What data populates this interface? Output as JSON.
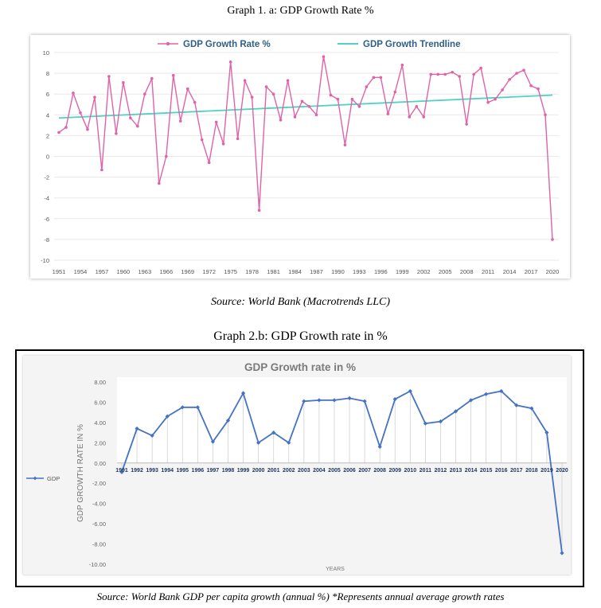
{
  "graph1": {
    "caption": "Graph 1. a: GDP Growth Rate %",
    "source": "Source: World Bank (Macrotrends LLC)"
  },
  "graph2": {
    "caption": "Graph   2.b: GDP Growth rate in %",
    "source": "Source: World Bank GDP per capita growth (annual %) *Represents annual average growth rates"
  },
  "chart_data": [
    {
      "type": "line",
      "title": "",
      "legend_position": "top",
      "x": [
        1951,
        1952,
        1953,
        1954,
        1955,
        1956,
        1957,
        1958,
        1959,
        1960,
        1961,
        1962,
        1963,
        1964,
        1965,
        1966,
        1967,
        1968,
        1969,
        1970,
        1971,
        1972,
        1973,
        1974,
        1975,
        1976,
        1977,
        1978,
        1979,
        1980,
        1981,
        1982,
        1983,
        1984,
        1985,
        1986,
        1987,
        1988,
        1989,
        1990,
        1991,
        1992,
        1993,
        1994,
        1995,
        1996,
        1997,
        1998,
        1999,
        2000,
        2001,
        2002,
        2003,
        2004,
        2005,
        2006,
        2007,
        2008,
        2009,
        2010,
        2011,
        2012,
        2013,
        2014,
        2015,
        2016,
        2017,
        2018,
        2019,
        2020
      ],
      "x_tick_labels": [
        "1951",
        "1954",
        "1957",
        "1960",
        "1963",
        "1966",
        "1969",
        "1972",
        "1975",
        "1978",
        "1981",
        "1984",
        "1987",
        "1990",
        "1993",
        "1996",
        "1999",
        "2002",
        "2005",
        "2008",
        "2011",
        "2014",
        "2017",
        "2020"
      ],
      "ylim": [
        -10,
        10
      ],
      "y_tick_labels": [
        "10",
        "8",
        "6",
        "4",
        "2",
        "0",
        "-2",
        "-4",
        "-6",
        "-8",
        "-10"
      ],
      "grid": true,
      "series": [
        {
          "name": "GDP Growth Rate %",
          "color": "#e062a8",
          "marker": "circle",
          "values": [
            2.3,
            2.8,
            6.1,
            4.2,
            2.6,
            5.7,
            -1.3,
            7.7,
            2.2,
            7.1,
            3.7,
            2.9,
            6.0,
            7.5,
            -2.6,
            0.0,
            7.8,
            3.4,
            6.5,
            5.2,
            1.6,
            -0.6,
            3.3,
            1.2,
            9.1,
            1.7,
            7.3,
            5.7,
            -5.2,
            6.7,
            6.0,
            3.5,
            7.3,
            3.8,
            5.3,
            4.8,
            4.0,
            9.6,
            5.9,
            5.5,
            1.1,
            5.5,
            4.8,
            6.7,
            7.6,
            7.6,
            4.1,
            6.2,
            8.8,
            3.8,
            4.8,
            3.8,
            7.9,
            7.9,
            7.9,
            8.1,
            7.7,
            3.1,
            7.9,
            8.5,
            5.2,
            5.5,
            6.4,
            7.4,
            8.0,
            8.3,
            6.8,
            6.5,
            4.0,
            -8.0
          ]
        },
        {
          "name": "GDP Growth Trendline",
          "color": "#4fd1c5",
          "values_at_ends": [
            3.7,
            5.9
          ]
        }
      ]
    },
    {
      "type": "line",
      "title": "GDP Growth rate in %",
      "xlabel": "YEARS",
      "ylabel": "GDP GROWTH RATE IN %",
      "legend_position": "left",
      "categories": [
        "1991",
        "1992",
        "1993",
        "1994",
        "1995",
        "1996",
        "1997",
        "1998",
        "1999",
        "2000",
        "2001",
        "2002",
        "2003",
        "2004",
        "2005",
        "2006",
        "2007",
        "2008",
        "2009",
        "2010",
        "2011",
        "2012",
        "2013",
        "2014",
        "2015",
        "2016",
        "2017",
        "2018",
        "2019",
        "2020"
      ],
      "ylim": [
        -10,
        8
      ],
      "y_tick_labels": [
        "8.00",
        "6.00",
        "4.00",
        "2.00",
        "0.00",
        "-2.00",
        "-4.00",
        "-6.00",
        "-8.00",
        "-10.00"
      ],
      "grid": false,
      "series": [
        {
          "name": "GDP",
          "color": "#4472c4",
          "marker": "diamond",
          "values": [
            -0.9,
            3.4,
            2.7,
            4.6,
            5.5,
            5.5,
            2.1,
            4.2,
            6.9,
            2.0,
            3.0,
            2.0,
            6.1,
            6.2,
            6.2,
            6.4,
            6.1,
            1.6,
            6.3,
            7.1,
            3.9,
            4.1,
            5.1,
            6.2,
            6.8,
            7.1,
            5.7,
            5.4,
            3.0,
            -8.9
          ]
        }
      ]
    }
  ]
}
